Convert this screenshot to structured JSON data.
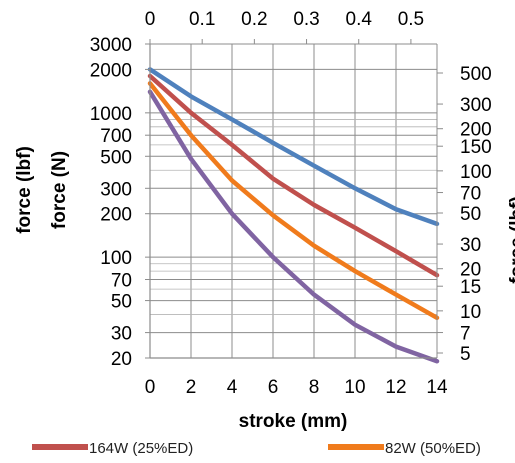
{
  "chart_data": {
    "type": "line",
    "title": "",
    "xlabel": "stroke (mm)",
    "x_top_label": "",
    "ylabel_left_outer": "force (lbf)",
    "ylabel_left": "force (N)",
    "ylabel_right": "force (lbf)",
    "xlim": [
      0,
      14
    ],
    "x_ticks": [
      "0",
      "2",
      "4",
      "6",
      "8",
      "10",
      "12",
      "14"
    ],
    "x_top_lim": [
      0,
      0.55
    ],
    "x_top_ticks": [
      "0",
      "0.1",
      "0.2",
      "0.3",
      "0.4",
      "0.5"
    ],
    "y_scale": "log",
    "ylim": [
      20,
      3000
    ],
    "y_ticks_left": [
      "20",
      "30",
      "50",
      "70",
      "100",
      "200",
      "300",
      "500",
      "700",
      "1000",
      "2000",
      "3000"
    ],
    "y_ticks_right": [
      "5",
      "7",
      "10",
      "15",
      "20",
      "30",
      "50",
      "70",
      "100",
      "150",
      "200",
      "300",
      "500"
    ],
    "grid": true,
    "legend_position": "bottom",
    "series": [
      {
        "name": "",
        "color": "#4f81bd",
        "x": [
          0,
          2,
          4,
          6,
          8,
          10,
          12,
          14
        ],
        "y": [
          2000,
          1300,
          900,
          620,
          430,
          300,
          215,
          170
        ]
      },
      {
        "name": "164W (25%ED)",
        "color": "#c0504d",
        "x": [
          0,
          2,
          4,
          6,
          8,
          10,
          12,
          14
        ],
        "y": [
          1800,
          1000,
          600,
          350,
          230,
          160,
          110,
          75
        ]
      },
      {
        "name": "82W (50%ED)",
        "color": "#f07b1c",
        "x": [
          0,
          2,
          4,
          6,
          8,
          10,
          12,
          14
        ],
        "y": [
          1600,
          700,
          340,
          195,
          120,
          80,
          55,
          38
        ]
      },
      {
        "name": "",
        "color": "#8064a2",
        "x": [
          0,
          2,
          4,
          6,
          8,
          10,
          12,
          14
        ],
        "y": [
          1400,
          480,
          200,
          100,
          55,
          34,
          24,
          19
        ]
      }
    ]
  }
}
